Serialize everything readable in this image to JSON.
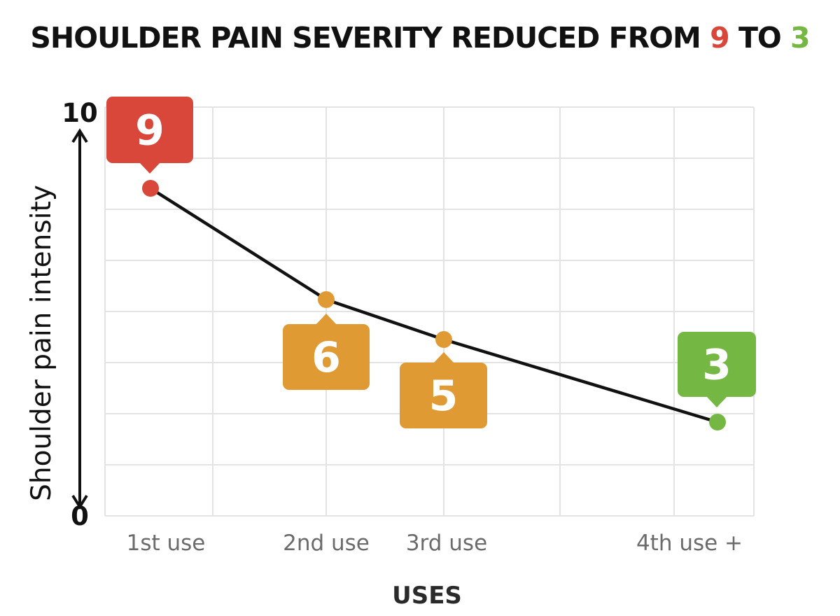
{
  "title": {
    "prefix": "SHOULDER PAIN SEVERITY REDUCED FROM",
    "from_value": "9",
    "connector": "TO",
    "to_value": "3"
  },
  "chart_data": {
    "type": "line",
    "title": "SHOULDER PAIN SEVERITY REDUCED FROM 9 TO 3",
    "xlabel": "USES",
    "ylabel": "Shoulder pain intensity",
    "categories": [
      "1st use",
      "2nd use",
      "3rd use",
      "4th use +"
    ],
    "values": [
      9,
      6,
      5,
      3
    ],
    "point_labels": [
      "9",
      "6",
      "5",
      "3"
    ],
    "ylim": [
      0,
      10
    ],
    "y_tick_labels": [
      "0",
      "10"
    ],
    "grid": true,
    "legend": "none",
    "colors": {
      "line": "#111111",
      "grid": "#e3e3e3",
      "start": "#d9473a",
      "middle": "#e09a33",
      "end": "#74b843"
    },
    "point_colors": [
      "#d9473a",
      "#e09a33",
      "#e09a33",
      "#74b843"
    ]
  }
}
